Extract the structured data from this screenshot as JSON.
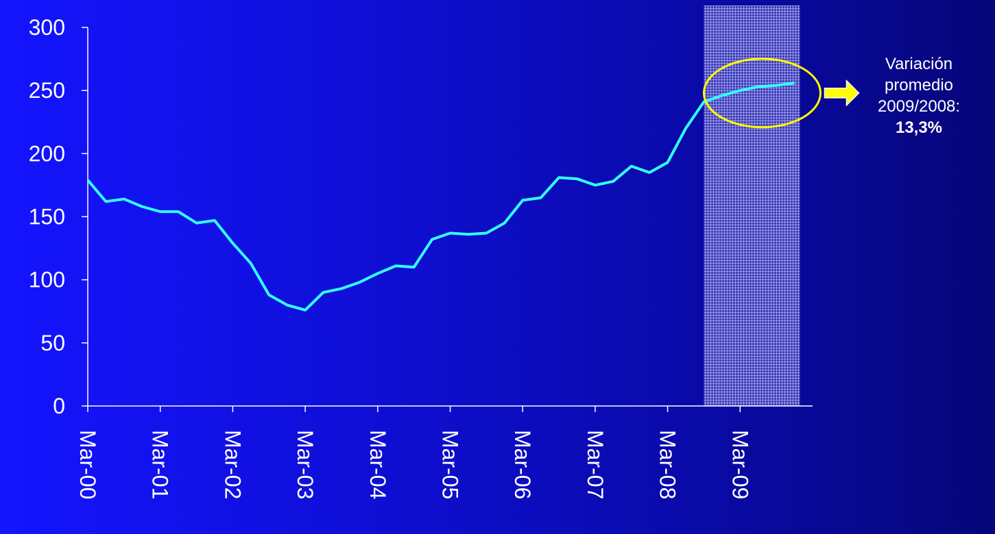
{
  "chart_data": {
    "type": "line",
    "title": "",
    "xlabel": "",
    "ylabel": "",
    "ylim": [
      0,
      300
    ],
    "yticks": [
      0,
      50,
      100,
      150,
      200,
      250,
      300
    ],
    "x_tick_labels": [
      "Mar-00",
      "Mar-01",
      "Mar-02",
      "Mar-03",
      "Mar-04",
      "Mar-05",
      "Mar-06",
      "Mar-07",
      "Mar-08",
      "Mar-09"
    ],
    "points_per_year": 4,
    "series": [
      {
        "color": "#33ffff",
        "values": [
          179,
          162,
          164,
          158,
          154,
          154,
          145,
          147,
          129,
          113,
          88,
          80,
          76,
          90,
          93,
          98,
          105,
          111,
          110,
          132,
          137,
          136,
          137,
          145,
          163,
          165,
          181,
          180,
          175,
          178,
          190,
          185,
          193,
          220,
          241,
          246,
          250,
          253,
          254,
          256
        ]
      }
    ],
    "highlight_region": {
      "from_index": 34,
      "to_index": 39.3
    },
    "highlight_ellipse_color": "#ffff00",
    "arrow_color": "#ffff00",
    "grid": false,
    "annotation": {
      "line1": "Variación",
      "line2": "promedio",
      "line3": "2009/2008:",
      "value": "13,3%"
    }
  }
}
